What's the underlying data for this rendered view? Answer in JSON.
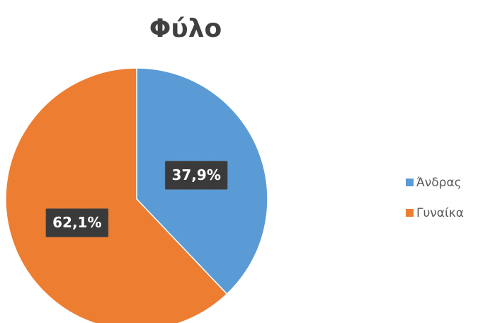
{
  "chart_data": {
    "type": "pie",
    "title": "Φύλο",
    "categories": [
      "Άνδρας",
      "Γυναίκα"
    ],
    "values": [
      37.9,
      62.1
    ],
    "value_labels": [
      "37,9%",
      "62,1%"
    ],
    "colors": [
      "#5b9bd5",
      "#ed7d31"
    ],
    "legend": "right"
  }
}
